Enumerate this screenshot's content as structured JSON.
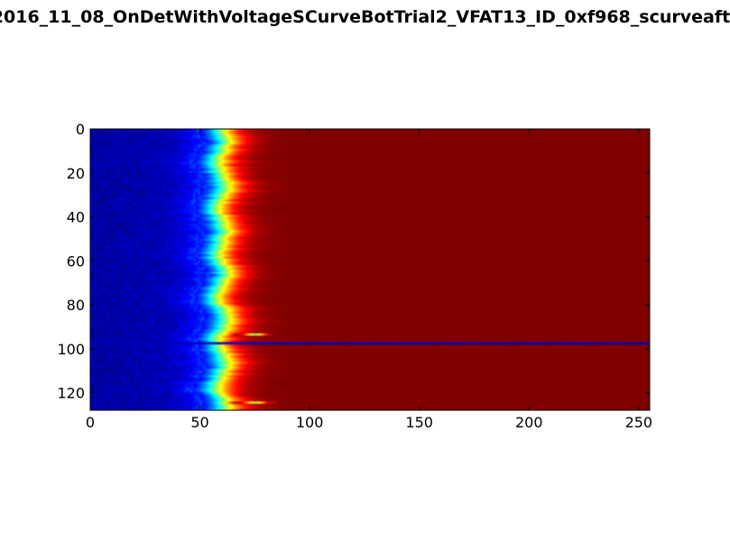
{
  "chart_data": {
    "type": "heatmap",
    "title": "2016_11_08_OnDetWithVoltageSCurveBotTrial2_VFAT13_ID_0xf968_scurveaft",
    "xlabel": "",
    "ylabel": "",
    "xlim": [
      0,
      255
    ],
    "ylim": [
      128,
      0
    ],
    "x_ticks": [
      0,
      50,
      100,
      150,
      200,
      250
    ],
    "y_ticks": [
      0,
      20,
      40,
      60,
      80,
      100,
      120
    ],
    "x_tick_labels": [
      "0",
      "50",
      "100",
      "150",
      "200",
      "250"
    ],
    "y_tick_labels": [
      "0",
      "20",
      "40",
      "60",
      "80",
      "100",
      "120"
    ],
    "colormap": "jet",
    "grid": false,
    "n_channels": 128,
    "n_bins": 255,
    "value_range": [
      0,
      1
    ],
    "turn_on_center": 59,
    "turn_on_width": 5,
    "dead_channel": 97,
    "anomalous_channels": [
      93,
      124
    ],
    "colors": {
      "low": "#00007f",
      "high": "#7f0000",
      "frame": "#000000",
      "background": "#ffffff"
    }
  }
}
